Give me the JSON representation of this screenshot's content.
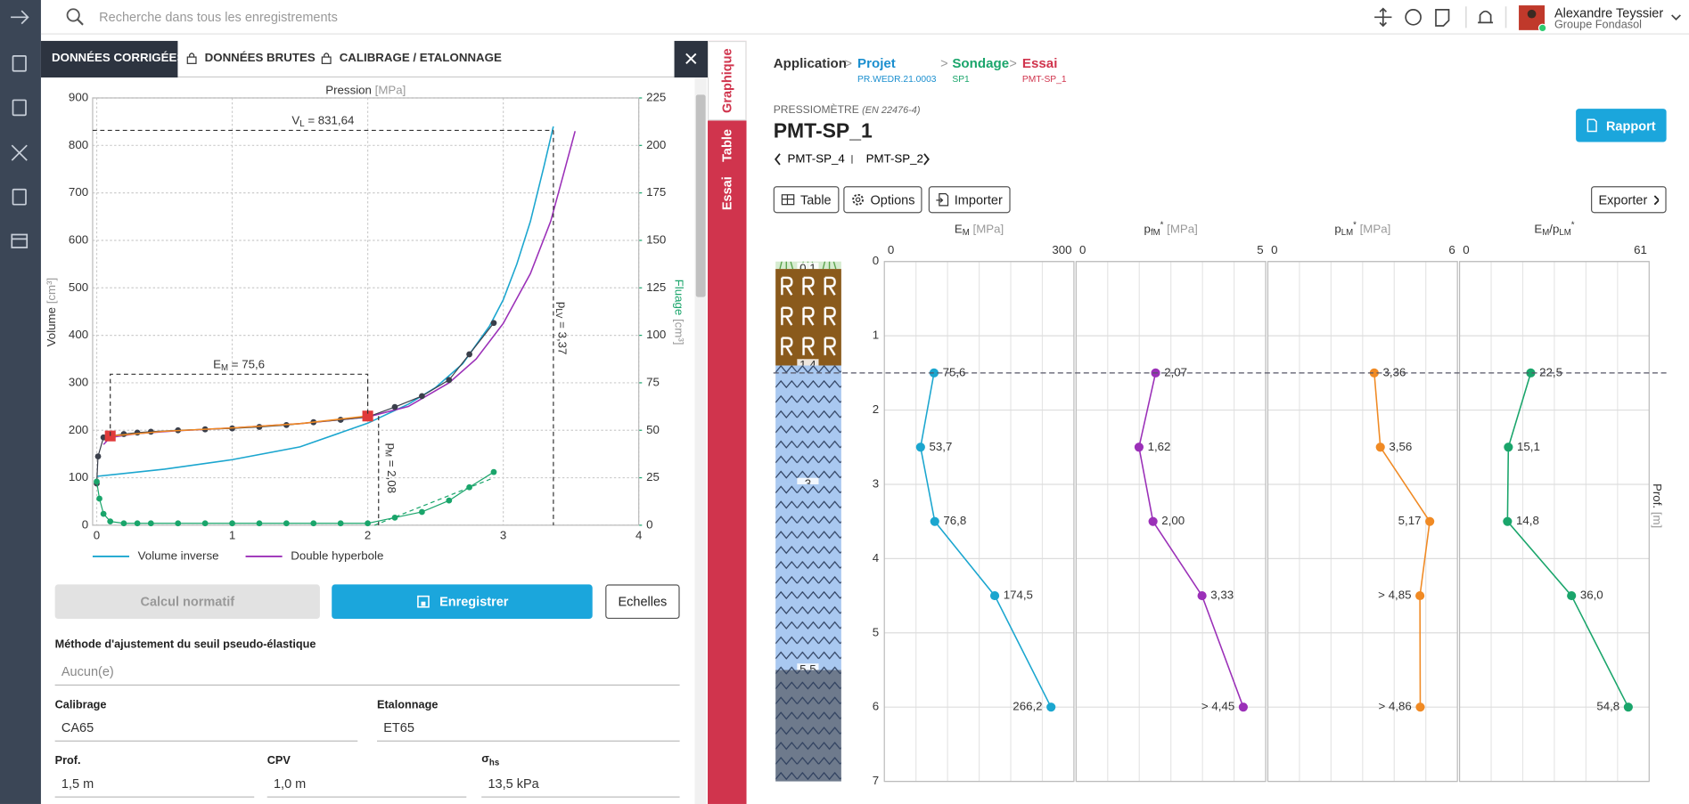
{
  "topbar": {
    "search_placeholder": "Recherche dans tous les enregistrements",
    "user_name": "Alexandre Teyssier",
    "user_org": "Groupe Fondasol"
  },
  "left_panel": {
    "tabs": [
      "DONNÉES CORRIGÉES",
      "DONNÉES BRUTES",
      "CALIBRAGE / ETALONNAGE"
    ],
    "buttons": [
      "Calcul normatif",
      "Enregistrer",
      "Echelles"
    ],
    "form": {
      "method_label": "Méthode d'ajustement du seuil pseudo-élastique",
      "method_value": "Aucun(e)",
      "calibrage_label": "Calibrage",
      "calibrage_value": "CA65",
      "etalonnage_label": "Etalonnage",
      "etalonnage_value": "ET65",
      "prof_label": "Prof.",
      "prof_value": "1,5 m",
      "cpv_label": "CPV",
      "cpv_value": "1,0 m",
      "sigma_label": "σ",
      "sigma_sub": "hs",
      "sigma_value": "13,5 kPa"
    }
  },
  "side_tabs": [
    "Graphique",
    "Table",
    "Essai"
  ],
  "header": {
    "breadcrumb": [
      {
        "label": "Application",
        "color": "#333333"
      },
      {
        "label": "Projet",
        "sub": "PR.WEDR.21.0003",
        "color": "#1b8fcf"
      },
      {
        "label": "Sondage",
        "sub": "SP1",
        "color": "#1aa56b"
      },
      {
        "label": "Essai",
        "sub": "PMT-SP_1",
        "color": "#d0344d"
      }
    ],
    "separator": ">",
    "kind": "PRESSIOMÈTRE",
    "norm": "(EN 22476-4)",
    "title": "PMT-SP_1",
    "prev": "PMT-SP_4",
    "next": "PMT-SP_2",
    "report": "Rapport",
    "toolbar": [
      "Table",
      "Options",
      "Importer"
    ],
    "export": "Exporter"
  },
  "chart_data": [
    {
      "type": "line",
      "x_label": "Pression",
      "x_unit": "[MPa]",
      "y_label": "Volume",
      "y_unit": "[cm³]",
      "y2_label": "Fluage",
      "y2_unit": "[cm³]",
      "xlim": [
        -0.03,
        4
      ],
      "xticks": [
        0,
        1,
        2,
        3,
        4
      ],
      "ylim": [
        0,
        900
      ],
      "yticks": [
        0,
        100,
        200,
        300,
        400,
        500,
        600,
        700,
        800,
        900
      ],
      "y2lim": [
        0,
        225
      ],
      "y2ticks": [
        0,
        25,
        50,
        75,
        100,
        125,
        150,
        175,
        200,
        225
      ],
      "grid": true,
      "legend": "bottom-left",
      "series": [
        {
          "color": "#1ba6cf",
          "style": "line",
          "name": "Volume inverse",
          "x": [
            0,
            0.5,
            1,
            1.5,
            2,
            2.3,
            2.5,
            2.7,
            2.9,
            3.0,
            3.1,
            3.2,
            3.3,
            3.37
          ],
          "values": [
            103,
            118,
            138,
            165,
            215,
            255,
            290,
            340,
            420,
            475,
            550,
            640,
            755,
            840
          ]
        },
        {
          "color": "#9b30b8",
          "style": "line",
          "name": "Double hyperbole",
          "x": [
            0.05,
            0.1,
            0.3,
            0.6,
            1,
            1.5,
            2,
            2.3,
            2.6,
            2.8,
            3.0,
            3.2,
            3.35,
            3.45,
            3.53
          ],
          "values": [
            170,
            185,
            193,
            199,
            205,
            214,
            228,
            250,
            300,
            350,
            425,
            530,
            640,
            745,
            830
          ]
        },
        {
          "color": "#3a3f4b",
          "style": "line-points",
          "x": [
            0,
            0.01,
            0.05,
            0.1,
            0.2,
            0.3,
            0.4,
            0.6,
            0.8,
            1.0,
            1.2,
            1.4,
            1.6,
            1.8,
            2.0,
            2.2,
            2.4,
            2.6,
            2.75,
            2.93
          ],
          "values": [
            88,
            145,
            185,
            188,
            192,
            195,
            197,
            200,
            202,
            204,
            207,
            211,
            217,
            222,
            228,
            249,
            272,
            306,
            360,
            426
          ]
        },
        {
          "color": "#f08a24",
          "style": "line",
          "x": [
            0.1,
            0.5,
            1,
            1.5,
            2.0
          ],
          "values": [
            188,
            198,
            205,
            214,
            230
          ]
        },
        {
          "color": "#1aa56b",
          "style": "line-points",
          "axis": "y2",
          "x": [
            0,
            0.02,
            0.05,
            0.1,
            0.2,
            0.3,
            0.4,
            0.6,
            0.8,
            1.0,
            1.2,
            1.4,
            1.6,
            1.8,
            2.0,
            2.2,
            2.4,
            2.6,
            2.75,
            2.93
          ],
          "values": [
            23,
            14,
            6,
            2,
            1,
            1,
            1,
            1,
            1,
            1,
            1,
            1,
            1,
            1,
            1,
            4,
            7,
            13,
            20,
            28
          ]
        },
        {
          "color": "#1aa56b",
          "style": "dashed",
          "axis": "y2",
          "x": [
            2.05,
            2.93
          ],
          "values": [
            0,
            25
          ]
        },
        {
          "color": "#e03a3a",
          "style": "squares",
          "x": [
            0.1,
            2.0
          ],
          "values": [
            188,
            230
          ]
        }
      ],
      "annotations": {
        "vl": {
          "value": 831.64,
          "parts": [
            {
              "text": "V"
            },
            {
              "text": "L",
              "style": "sub"
            },
            {
              "text": " = 831,64"
            }
          ]
        },
        "plv": {
          "value": 3.37,
          "parts": [
            {
              "text": "p"
            },
            {
              "text": "LV",
              "style": "sub"
            },
            {
              "text": " = 3,37"
            }
          ]
        },
        "pm": {
          "value": 2.08,
          "parts": [
            {
              "text": "p"
            },
            {
              "text": "M",
              "style": "sub"
            },
            {
              "text": " = 2,08"
            }
          ]
        },
        "em": {
          "x": [
            0.1,
            2.0
          ],
          "y": 318,
          "parts": [
            {
              "text": "E"
            },
            {
              "text": "M",
              "style": "sub"
            },
            {
              "text": " = 75,6"
            }
          ]
        }
      }
    },
    {
      "type": "profile",
      "ylim": [
        0,
        7
      ],
      "yticks": [
        0,
        1,
        2,
        3,
        4,
        5,
        6,
        7
      ],
      "y_label": "Prof.",
      "y_unit": "[m]",
      "y": [
        1.5,
        2.5,
        3.5,
        4.5,
        6
      ],
      "current_depth": 1.5,
      "soil_layers": [
        {
          "top": 0,
          "bottom": 0.1,
          "label": "0,1",
          "color": "#d6ecd0",
          "pattern": "grass"
        },
        {
          "top": 0.1,
          "bottom": 1.4,
          "label": "1,4",
          "color": "#8a5a1c",
          "pattern": "R"
        },
        {
          "top": 1.4,
          "bottom": 3,
          "label": "3",
          "color": "#a9c8f0",
          "pattern": "zigzag"
        },
        {
          "top": 3,
          "bottom": 5.5,
          "label": "5,5",
          "color": "#a9c8f0",
          "pattern": "zigzag"
        },
        {
          "top": 5.5,
          "bottom": 7,
          "color": "#6e7a8c",
          "pattern": "zigzag"
        }
      ],
      "panels": [
        {
          "title": [
            {
              "text": "E"
            },
            {
              "text": "M",
              "style": "sub"
            },
            {
              "text": " [MPa]",
              "style": "unit"
            }
          ],
          "xlim": [
            0,
            300
          ],
          "xticks": [
            0,
            300
          ],
          "color": "#1ba6cf",
          "values": [
            75.6,
            53.7,
            76.8,
            174.5,
            266.2
          ],
          "value_labels": [
            "75,6",
            "53,7",
            "76,8",
            "174,5",
            "266,2"
          ]
        },
        {
          "title": [
            {
              "text": "p"
            },
            {
              "text": "fM",
              "style": "sub"
            },
            {
              "text": "*",
              "style": "sup"
            },
            {
              "text": " [MPa]",
              "style": "unit"
            }
          ],
          "xlim": [
            0,
            5
          ],
          "xticks": [
            0,
            5
          ],
          "color": "#9b30b8",
          "values": [
            2.07,
            1.62,
            2.0,
            3.33,
            4.45
          ],
          "value_labels": [
            "2,07",
            "1,62",
            "2,00",
            "3,33",
            "> 4,45"
          ]
        },
        {
          "title": [
            {
              "text": "p"
            },
            {
              "text": "LM",
              "style": "sub"
            },
            {
              "text": "*",
              "style": "sup"
            },
            {
              "text": " [MPa]",
              "style": "unit"
            }
          ],
          "xlim": [
            0,
            6
          ],
          "xticks": [
            0,
            6
          ],
          "color": "#f08a24",
          "values": [
            3.36,
            3.56,
            5.17,
            4.85,
            4.86
          ],
          "value_labels": [
            "3,36",
            "3,56",
            "5,17",
            "> 4,85",
            "> 4,86"
          ]
        },
        {
          "title": [
            {
              "text": "E"
            },
            {
              "text": "M",
              "style": "sub"
            },
            {
              "text": "/p"
            },
            {
              "text": "LM",
              "style": "sub"
            },
            {
              "text": "*",
              "style": "sup"
            }
          ],
          "xlim": [
            0,
            61
          ],
          "xticks": [
            0,
            61
          ],
          "color": "#1aa56b",
          "values": [
            22.5,
            15.1,
            14.8,
            36.0,
            54.8
          ],
          "value_labels": [
            "22,5",
            "15,1",
            "14,8",
            "36,0",
            "54,8"
          ]
        }
      ]
    }
  ]
}
